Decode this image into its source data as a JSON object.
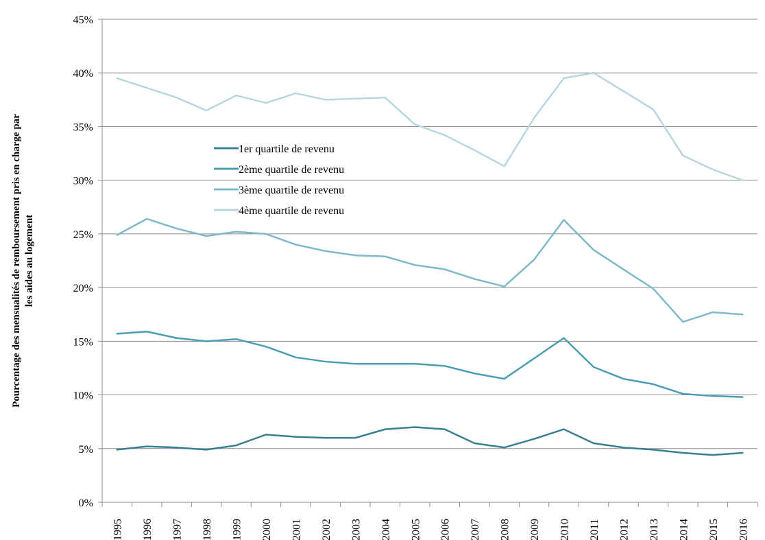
{
  "chart_data": {
    "type": "line",
    "title": "",
    "xlabel": "",
    "ylabel": "Pourcentage des mensualités de remboursement pris en charge par les aides au logement",
    "ylabel_lines": [
      "Pourcentage des mensualités de remboursement pris en charge par",
      "les aides au logement"
    ],
    "ylim": [
      0,
      45
    ],
    "y_ticks": [
      0,
      5,
      10,
      15,
      20,
      25,
      30,
      35,
      40,
      45
    ],
    "y_tick_labels": [
      "0%",
      "5%",
      "10%",
      "15%",
      "20%",
      "25%",
      "30%",
      "35%",
      "40%",
      "45%"
    ],
    "grid": "horizontal",
    "legend_position": "upper-left inside plot",
    "categories": [
      "1995",
      "1996",
      "1997",
      "1998",
      "1999",
      "2000",
      "2001",
      "2002",
      "2003",
      "2004",
      "2005",
      "2006",
      "2007",
      "2008",
      "2009",
      "2010",
      "2011",
      "2012",
      "2013",
      "2014",
      "2015",
      "2016"
    ],
    "series": [
      {
        "name": "1er quartile de revenu",
        "color": "#3a7f8e",
        "values": [
          4.9,
          5.2,
          5.1,
          4.9,
          5.3,
          6.3,
          6.1,
          6.0,
          6.0,
          6.8,
          7.0,
          6.8,
          5.5,
          5.1,
          5.9,
          6.8,
          5.5,
          5.1,
          4.9,
          4.6,
          4.4,
          4.6
        ]
      },
      {
        "name": "2ème quartile de revenu",
        "color": "#4a9db2",
        "values": [
          15.7,
          15.9,
          15.3,
          15.0,
          15.2,
          14.5,
          13.5,
          13.1,
          12.9,
          12.9,
          12.9,
          12.7,
          12.0,
          11.5,
          13.4,
          15.3,
          12.6,
          11.5,
          11.0,
          10.1,
          9.9,
          9.8
        ]
      },
      {
        "name": "3ème quartile de revenu",
        "color": "#7fb8c8",
        "values": [
          24.9,
          26.4,
          25.5,
          24.8,
          25.2,
          25.0,
          24.0,
          23.4,
          23.0,
          22.9,
          22.1,
          21.7,
          20.8,
          20.1,
          22.6,
          26.3,
          23.5,
          21.7,
          19.9,
          16.8,
          17.7,
          17.5
        ]
      },
      {
        "name": "4ème quartile de revenu",
        "color": "#b8d6df",
        "values": [
          39.5,
          38.6,
          37.7,
          36.5,
          37.9,
          37.2,
          38.1,
          37.5,
          37.6,
          37.7,
          35.2,
          34.2,
          32.8,
          31.3,
          35.8,
          39.5,
          40.0,
          38.3,
          36.6,
          32.3,
          31.0,
          30.0
        ]
      }
    ]
  }
}
